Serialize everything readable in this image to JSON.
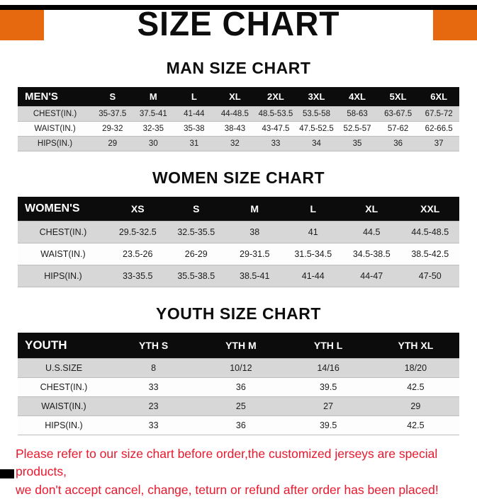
{
  "banner": {
    "title": "SIZE CHART"
  },
  "colors": {
    "accent_orange": "#E7690F",
    "footer_red": "#E8182D",
    "table_header_bg": "#0C0C0C",
    "row_stripe_gray": "#D7D7D7"
  },
  "men_section": {
    "heading": "MAN SIZE CHART",
    "table": {
      "header": [
        "MEN'S",
        "S",
        "M",
        "L",
        "XL",
        "2XL",
        "3XL",
        "4XL",
        "5XL",
        "6XL"
      ],
      "rows": [
        [
          "CHEST(IN.)",
          "35-37.5",
          "37.5-41",
          "41-44",
          "44-48.5",
          "48.5-53.5",
          "53.5-58",
          "58-63",
          "63-67.5",
          "67.5-72"
        ],
        [
          "WAIST(IN.)",
          "29-32",
          "32-35",
          "35-38",
          "38-43",
          "43-47.5",
          "47.5-52.5",
          "52.5-57",
          "57-62",
          "62-66.5"
        ],
        [
          "HIPS(IN.)",
          "29",
          "30",
          "31",
          "32",
          "33",
          "34",
          "35",
          "36",
          "37"
        ]
      ]
    }
  },
  "women_section": {
    "heading": "WOMEN SIZE CHART",
    "table": {
      "header": [
        "WOMEN'S",
        "XS",
        "S",
        "M",
        "L",
        "XL",
        "XXL"
      ],
      "rows": [
        [
          "CHEST(IN.)",
          "29.5-32.5",
          "32.5-35.5",
          "38",
          "41",
          "44.5",
          "44.5-48.5"
        ],
        [
          "WAIST(IN.)",
          "23.5-26",
          "26-29",
          "29-31.5",
          "31.5-34.5",
          "34.5-38.5",
          "38.5-42.5"
        ],
        [
          "HIPS(IN.)",
          "33-35.5",
          "35.5-38.5",
          "38.5-41",
          "41-44",
          "44-47",
          "47-50"
        ]
      ]
    }
  },
  "youth_section": {
    "heading": "YOUTH SIZE CHART",
    "table": {
      "header": [
        "YOUTH",
        "YTH S",
        "YTH M",
        "YTH L",
        "YTH XL"
      ],
      "rows": [
        [
          "U.S.SIZE",
          "8",
          "10/12",
          "14/16",
          "18/20"
        ],
        [
          "CHEST(IN.)",
          "33",
          "36",
          "39.5",
          "42.5"
        ],
        [
          "WAIST(IN.)",
          "23",
          "25",
          "27",
          "29"
        ],
        [
          "HIPS(IN.)",
          "33",
          "36",
          "39.5",
          "42.5"
        ]
      ]
    }
  },
  "footer": {
    "line1": "Please refer to our size chart before order,the customized jerseys are special products,",
    "line2": "we don't accept cancel, change, teturn or refund after order has been placed!"
  }
}
